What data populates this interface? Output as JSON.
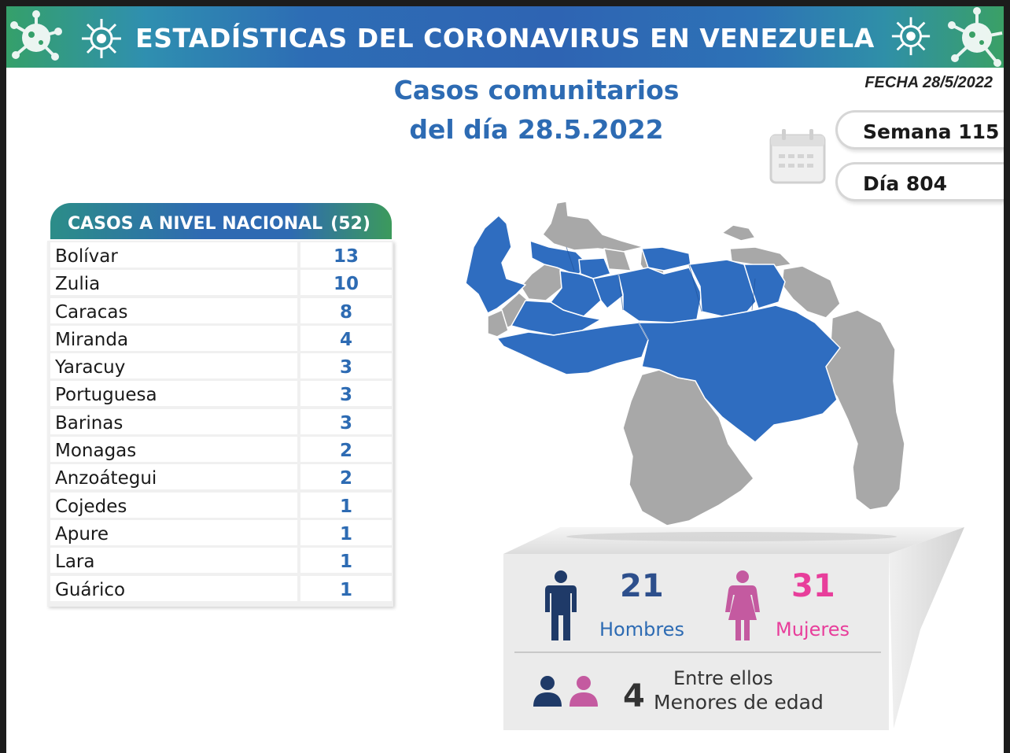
{
  "header": {
    "title": "ESTADÍSTICAS DEL CORONAVIRUS EN VENEZUELA"
  },
  "subtitle": {
    "line1": "Casos comunitarios",
    "line2": "del día 28.5.2022"
  },
  "date_label": "FECHA 28/5/2022",
  "week": "Semana 115",
  "day": "Día 804",
  "national": {
    "label": "CASOS A NIVEL NACIONAL",
    "total": "(52)",
    "rows": [
      {
        "state": "Bolívar",
        "cases": "13"
      },
      {
        "state": "Zulia",
        "cases": "10"
      },
      {
        "state": "Caracas",
        "cases": "8"
      },
      {
        "state": "Miranda",
        "cases": "4"
      },
      {
        "state": "Yaracuy",
        "cases": "3"
      },
      {
        "state": "Portuguesa",
        "cases": "3"
      },
      {
        "state": "Barinas",
        "cases": "3"
      },
      {
        "state": "Monagas",
        "cases": "2"
      },
      {
        "state": "Anzoátegui",
        "cases": "2"
      },
      {
        "state": "Cojedes",
        "cases": "1"
      },
      {
        "state": "Apure",
        "cases": "1"
      },
      {
        "state": "Lara",
        "cases": "1"
      },
      {
        "state": "Guárico",
        "cases": "1"
      }
    ]
  },
  "gender": {
    "men_count": "21",
    "men_label": "Hombres",
    "women_count": "31",
    "women_label": "Mujeres"
  },
  "minors": {
    "prefix": "Entre ellos",
    "count": "4",
    "label": "Menores de edad"
  },
  "colors": {
    "accent_blue": "#2d6bb3",
    "men": "#1f3a68",
    "women": "#e83e9b",
    "women_icon": "#c45aa0",
    "map_highlight": "#2f6dc0",
    "map_other": "#a8a8a8"
  },
  "icons": [
    "virus-icon",
    "calendar-icon",
    "man-icon",
    "woman-icon",
    "child-icon"
  ]
}
